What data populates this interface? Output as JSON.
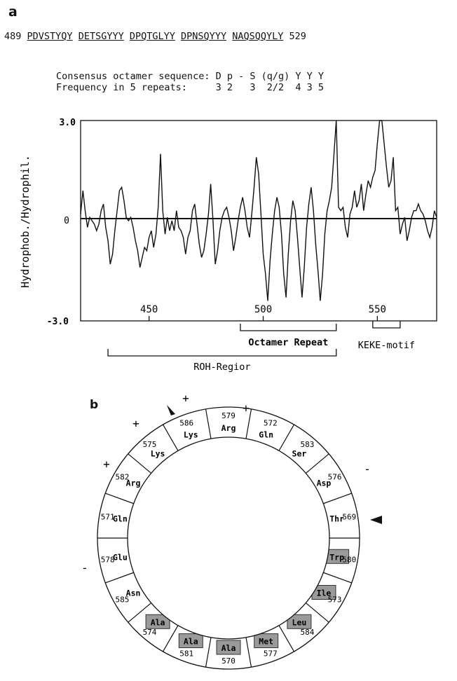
{
  "panel_a": {
    "label": "a",
    "sequence": {
      "start": "489",
      "end": "529",
      "repeats": [
        "PDVSTYQY",
        "DETSGYYY",
        "DPQTGLYY",
        "DPNSQYYY",
        "NAQSQQYLY"
      ]
    },
    "consensus": {
      "title": "Consensus octamer sequence:",
      "residues": "D p - S (q/g) Y Y Y",
      "freq_title": "Frequency in 5 repeats:",
      "freqs": "3 2   3  2/2  4 3 5"
    }
  },
  "chart_data": {
    "type": "line",
    "ylabel": "Hydrophob./Hydrophil.",
    "ylim": [
      -3.0,
      3.0
    ],
    "xlim": [
      420,
      576
    ],
    "ytick_labels": [
      "3.0",
      "0",
      "-3.0"
    ],
    "xticks": [
      450,
      500,
      550
    ],
    "xtick_labels": [
      "450",
      "500",
      "550"
    ],
    "series": [
      {
        "x": [
          420,
          421,
          422,
          423,
          424,
          425,
          426,
          427,
          428,
          429,
          430,
          431,
          432,
          433,
          434,
          435,
          436,
          437,
          438,
          439,
          440,
          441,
          442,
          443,
          444,
          445,
          446,
          447,
          448,
          449,
          450,
          451,
          452,
          453,
          454,
          455,
          456,
          457,
          458,
          459,
          460,
          461,
          462,
          463,
          464,
          465,
          466,
          467,
          468,
          469,
          470,
          471,
          472,
          473,
          474,
          475,
          476,
          477,
          478,
          479,
          480,
          481,
          482,
          483,
          484,
          485,
          486,
          487,
          488,
          489,
          490,
          491,
          492,
          493,
          494,
          495,
          496,
          497,
          498,
          499,
          500,
          501,
          502,
          503,
          504,
          505,
          506,
          507,
          508,
          509,
          510,
          511,
          512,
          513,
          514,
          515,
          516,
          517,
          518,
          519,
          520,
          521,
          522,
          523,
          524,
          525,
          526,
          527,
          528,
          529,
          530,
          531,
          532,
          533,
          534,
          535,
          536,
          537,
          538,
          539,
          540,
          541,
          542,
          543,
          544,
          545,
          546,
          547,
          548,
          549,
          550,
          551,
          552,
          553,
          554,
          555,
          556,
          557,
          558,
          559,
          560,
          561,
          562,
          563,
          564,
          565,
          566,
          567,
          568,
          569,
          570,
          571,
          572,
          573,
          574,
          575,
          576
        ],
        "y": [
          0.2,
          0.9,
          0.3,
          -0.2,
          0.1,
          0.0,
          -0.1,
          -0.3,
          -0.1,
          0.3,
          0.5,
          -0.2,
          -0.6,
          -1.3,
          -1.0,
          -0.3,
          0.3,
          0.9,
          1.0,
          0.6,
          0.1,
          0.0,
          0.1,
          -0.2,
          -0.6,
          -0.9,
          -1.4,
          -1.1,
          -0.8,
          -0.9,
          -0.5,
          -0.3,
          -0.8,
          -0.4,
          0.4,
          2.0,
          0.3,
          -0.4,
          0.1,
          -0.3,
          0.0,
          -0.3,
          0.3,
          -0.2,
          -0.3,
          -0.5,
          -1.0,
          -0.5,
          -0.3,
          0.3,
          0.5,
          -0.1,
          -0.7,
          -1.1,
          -0.9,
          -0.4,
          0.2,
          1.1,
          0.0,
          -1.3,
          -0.9,
          -0.3,
          0.1,
          0.3,
          0.4,
          0.1,
          -0.3,
          -0.9,
          -0.5,
          0.0,
          0.4,
          0.7,
          0.3,
          -0.2,
          -0.5,
          0.2,
          1.0,
          1.9,
          1.4,
          0.2,
          -1.0,
          -1.6,
          -2.4,
          -1.2,
          -0.4,
          0.3,
          0.7,
          0.4,
          -0.4,
          -1.6,
          -2.3,
          -1.0,
          0.0,
          0.6,
          0.3,
          -0.5,
          -1.4,
          -2.3,
          -1.4,
          -0.2,
          0.5,
          1.0,
          0.3,
          -0.7,
          -1.5,
          -2.4,
          -1.6,
          -0.4,
          0.3,
          0.6,
          1.0,
          2.0,
          3.0,
          0.4,
          0.3,
          0.4,
          -0.2,
          -0.5,
          0.2,
          0.4,
          0.9,
          0.4,
          0.6,
          1.1,
          0.3,
          0.8,
          1.2,
          1.0,
          1.3,
          1.5,
          2.3,
          3.0,
          3.0,
          2.3,
          1.6,
          1.0,
          1.2,
          1.9,
          0.3,
          0.4,
          -0.4,
          -0.1,
          0.1,
          -0.6,
          -0.3,
          0.1,
          0.3,
          0.3,
          0.5,
          0.3,
          0.2,
          0.0,
          -0.3,
          -0.5,
          -0.2,
          0.3,
          0.1
        ]
      }
    ],
    "brackets": [
      {
        "label": "Octamer Repeat",
        "start": 490,
        "end": 532,
        "bold": true
      },
      {
        "label": "KEKE-motif",
        "start": 548,
        "end": 560,
        "bold": false
      },
      {
        "label": "ROH-Regior",
        "start": 432,
        "end": 532,
        "bold": false
      }
    ]
  },
  "panel_b": {
    "label": "b",
    "wheel": [
      {
        "num": "579",
        "aa": "Arg",
        "shaded": false
      },
      {
        "num": "572",
        "aa": "Gln",
        "shaded": false
      },
      {
        "num": "583",
        "aa": "Ser",
        "shaded": false
      },
      {
        "num": "576",
        "aa": "Asp",
        "shaded": false
      },
      {
        "num": "569",
        "aa": "Thr",
        "shaded": false
      },
      {
        "num": "580",
        "aa": "Trp",
        "shaded": true
      },
      {
        "num": "573",
        "aa": "Ile",
        "shaded": true
      },
      {
        "num": "584",
        "aa": "Leu",
        "shaded": true
      },
      {
        "num": "577",
        "aa": "Met",
        "shaded": true
      },
      {
        "num": "570",
        "aa": "Ala",
        "shaded": true
      },
      {
        "num": "581",
        "aa": "Ala",
        "shaded": true
      },
      {
        "num": "574",
        "aa": "Ala",
        "shaded": true
      },
      {
        "num": "585",
        "aa": "Asn",
        "shaded": false
      },
      {
        "num": "578",
        "aa": "Glu",
        "shaded": false
      },
      {
        "num": "571",
        "aa": "Gln",
        "shaded": false
      },
      {
        "num": "582",
        "aa": "Arg",
        "shaded": false
      },
      {
        "num": "575",
        "aa": "Lys",
        "shaded": false
      },
      {
        "num": "586",
        "aa": "Lys",
        "shaded": false
      }
    ],
    "charges": [
      {
        "sign": "+"
      },
      {
        "sign": "+"
      },
      {
        "sign": "+"
      },
      {
        "sign": "+"
      },
      {
        "sign": "-"
      },
      {
        "sign": "-"
      }
    ],
    "shade_color": "#9a9a9a"
  }
}
